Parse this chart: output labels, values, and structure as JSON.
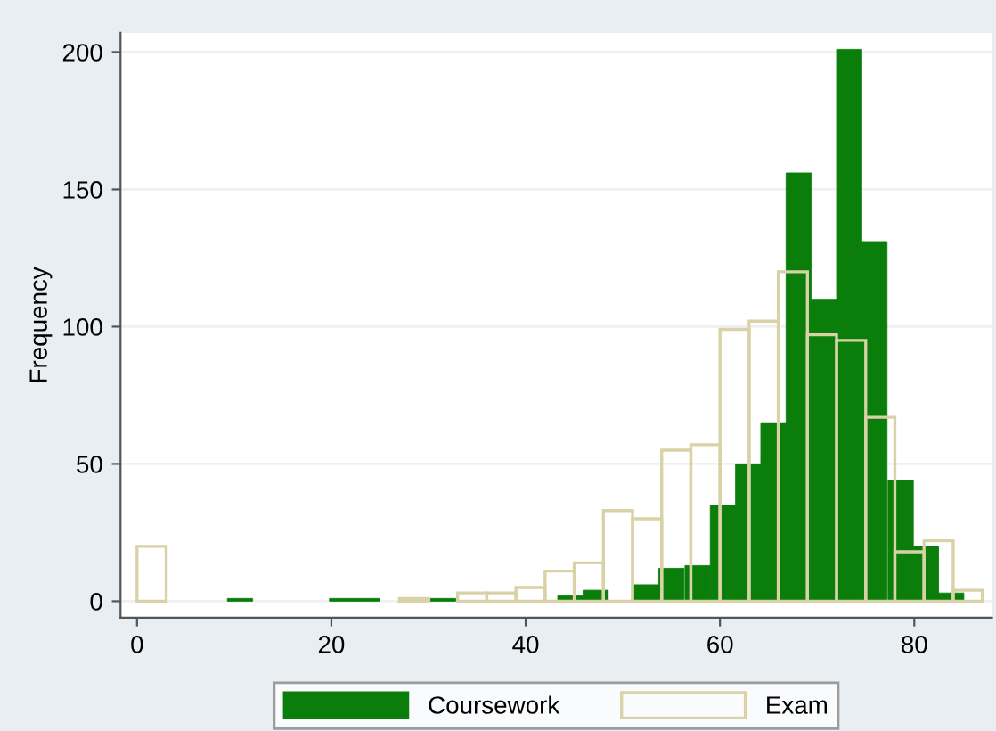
{
  "chart_data": {
    "type": "bar",
    "ylabel": "Frequency",
    "series": [
      {
        "name": "Coursework",
        "color": "#0a7d0a",
        "x": [
          10.6,
          13.2,
          15.8,
          18.5,
          21.1,
          23.7,
          26.3,
          28.9,
          31.5,
          34.1,
          36.8,
          39.4,
          42.0,
          44.6,
          47.2,
          49.8,
          52.4,
          55.0,
          57.7,
          60.3,
          62.9,
          65.5,
          68.1,
          70.7,
          73.3,
          75.9,
          78.6,
          81.2,
          83.8
        ],
        "values": [
          1,
          null,
          null,
          null,
          1,
          1,
          null,
          null,
          1,
          null,
          null,
          null,
          null,
          2,
          4,
          null,
          6,
          12,
          13,
          35,
          50,
          65,
          156,
          110,
          201,
          131,
          44,
          20,
          3
        ]
      },
      {
        "name": "Exam",
        "color": "#d8d2a6",
        "x": [
          1.5,
          4.5,
          7.5,
          10.5,
          13.5,
          16.5,
          19.5,
          22.5,
          25.5,
          28.5,
          31.5,
          34.5,
          37.5,
          40.5,
          43.5,
          46.5,
          49.5,
          52.5,
          55.5,
          58.5,
          61.5,
          64.5,
          67.5,
          70.5,
          73.5,
          76.5,
          79.5,
          82.5,
          85.5
        ],
        "values": [
          20,
          null,
          null,
          null,
          null,
          null,
          null,
          null,
          null,
          1,
          null,
          3,
          3,
          5,
          11,
          14,
          33,
          30,
          55,
          57,
          99,
          102,
          120,
          97,
          95,
          67,
          18,
          22,
          4
        ]
      }
    ],
    "xlim": [
      -1.7,
      88
    ],
    "ylim": [
      -6,
      207
    ],
    "xticks": [
      0,
      20,
      40,
      60,
      80
    ],
    "yticks": [
      0,
      50,
      100,
      150,
      200
    ],
    "grid": "y",
    "legend": "bottom"
  }
}
